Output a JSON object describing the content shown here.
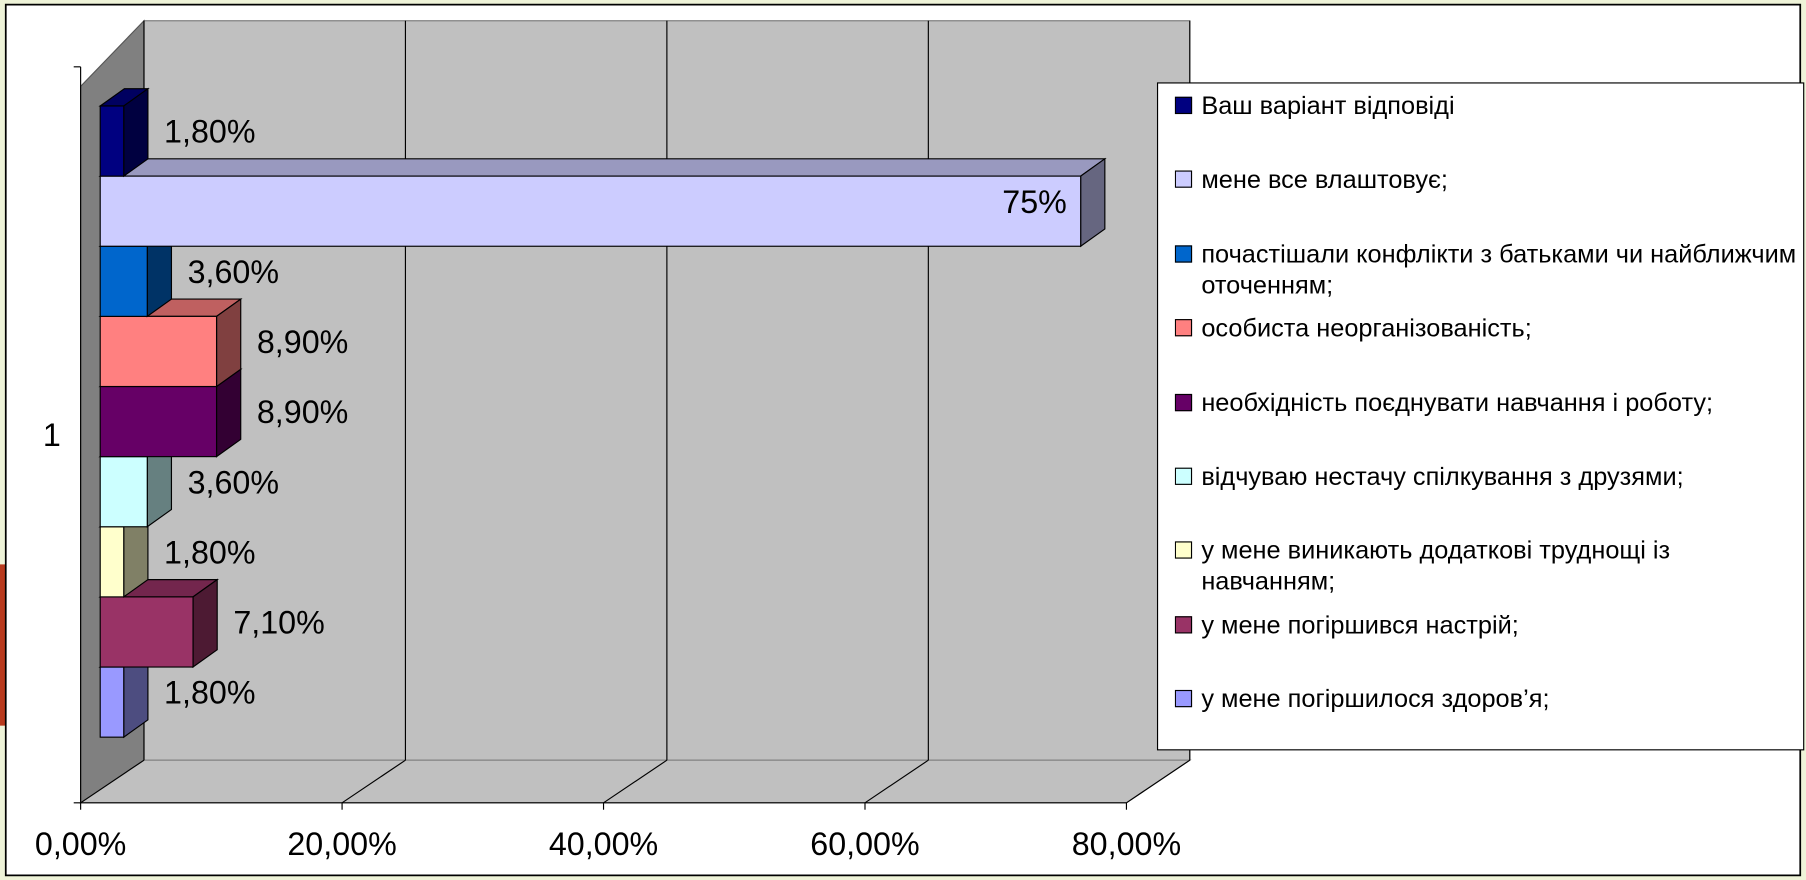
{
  "chart_data": {
    "type": "bar",
    "horizontal": true,
    "categories": [
      "1"
    ],
    "series": [
      {
        "name": "Ваш варіант відповіді",
        "color": "#000080",
        "values": [
          1.8
        ],
        "value_labels": [
          "1,80%"
        ]
      },
      {
        "name": "мене все влаштовує;",
        "color": "#ccccff",
        "values": [
          75
        ],
        "value_labels": [
          "75%"
        ]
      },
      {
        "name": "почастішали конфлікти з батьками чи найближчим оточенням;",
        "color": "#0066cc",
        "values": [
          3.6
        ],
        "value_labels": [
          "3,60%"
        ]
      },
      {
        "name": "особиста неорганізованість;",
        "color": "#ff8080",
        "values": [
          8.9
        ],
        "value_labels": [
          "8,90%"
        ]
      },
      {
        "name": "необхідність поєднувати навчання і роботу;",
        "color": "#660066",
        "values": [
          8.9
        ],
        "value_labels": [
          "8,90%"
        ]
      },
      {
        "name": "відчуваю нестачу спілкування з друзями;",
        "color": "#ccffff",
        "values": [
          3.6
        ],
        "value_labels": [
          "3,60%"
        ]
      },
      {
        "name": "у мене виникають додаткові труднощі із навчанням;",
        "color": "#ffffcc",
        "values": [
          1.8
        ],
        "value_labels": [
          "1,80%"
        ]
      },
      {
        "name": "у мене погіршився настрій;",
        "color": "#993366",
        "values": [
          7.1
        ],
        "value_labels": [
          "7,10%"
        ]
      },
      {
        "name": "у мене погіршилося здоров’я;",
        "color": "#9999ff",
        "values": [
          1.8
        ],
        "value_labels": [
          "1,80%"
        ]
      }
    ],
    "xlim": [
      0,
      80
    ],
    "xticks": [
      {
        "value": 0,
        "label": "0,00%"
      },
      {
        "value": 20,
        "label": "20,00%"
      },
      {
        "value": 40,
        "label": "40,00%"
      },
      {
        "value": 60,
        "label": "60,00%"
      },
      {
        "value": 80,
        "label": "80,00%"
      }
    ],
    "grid": true,
    "legend": "right"
  }
}
